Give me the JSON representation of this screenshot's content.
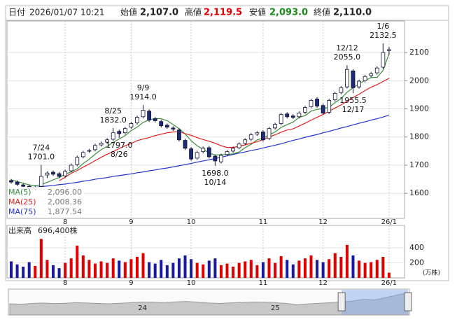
{
  "header": {
    "date_label": "日付",
    "datetime": "2026/01/07 10:21",
    "open_label": "始値",
    "open": "2,107.0",
    "high_label": "高値",
    "high": "2,119.5",
    "low_label": "安値",
    "low": "2,093.0",
    "close_label": "終値",
    "close": "2,110.0"
  },
  "chart_data": {
    "type": "candlestick",
    "categories": [
      null,
      null,
      null,
      null,
      null,
      null,
      null,
      null,
      null,
      "8",
      null,
      null,
      null,
      null,
      null,
      null,
      null,
      null,
      null,
      null,
      "9",
      null,
      null,
      null,
      null,
      null,
      null,
      null,
      null,
      null,
      "10",
      null,
      null,
      null,
      null,
      null,
      null,
      null,
      null,
      null,
      null,
      null,
      "11",
      null,
      null,
      null,
      null,
      null,
      null,
      null,
      null,
      null,
      "12",
      null,
      null,
      null,
      null,
      null,
      null,
      null,
      null,
      null,
      null,
      "26/1"
    ],
    "open": [
      1645,
      1640,
      1630,
      1625,
      1615,
      1625,
      1665,
      1675,
      1670,
      1662,
      1680,
      1702,
      1730,
      1750,
      1755,
      1772,
      1782,
      1792,
      1820,
      1815,
      1835,
      1850,
      1872,
      1892,
      1865,
      1855,
      1842,
      1832,
      1825,
      1788,
      1758,
      1725,
      1748,
      1762,
      1732,
      1712,
      1738,
      1750,
      1762,
      1778,
      1792,
      1810,
      1818,
      1795,
      1832,
      1848,
      1882,
      1875,
      1872,
      1888,
      1908,
      1935,
      1912,
      1888,
      1932,
      1958,
      1978,
      2035,
      1978,
      2000,
      2018,
      2028,
      2048,
      2107
    ],
    "high": [
      1651,
      1646,
      1636,
      1631,
      1628,
      1701,
      1678,
      1681,
      1676,
      1684,
      1706,
      1734,
      1751,
      1758,
      1776,
      1784,
      1796,
      1832,
      1826,
      1836,
      1854,
      1876,
      1914,
      1898,
      1871,
      1861,
      1848,
      1838,
      1831,
      1794,
      1764,
      1751,
      1766,
      1768,
      1738,
      1741,
      1754,
      1766,
      1781,
      1796,
      1814,
      1821,
      1824,
      1836,
      1851,
      1886,
      1888,
      1881,
      1891,
      1911,
      1936,
      1941,
      1918,
      1936,
      1961,
      1981,
      2055,
      2041,
      2004,
      2021,
      2031,
      2051,
      2132.5,
      2119.5
    ],
    "low": [
      1634,
      1626,
      1619,
      1612,
      1609,
      1619,
      1654,
      1662,
      1654,
      1656,
      1674,
      1696,
      1724,
      1744,
      1749,
      1766,
      1776,
      1786,
      1797,
      1809,
      1829,
      1844,
      1866,
      1854,
      1852,
      1834,
      1829,
      1822,
      1784,
      1754,
      1716,
      1719,
      1742,
      1724,
      1698,
      1706,
      1732,
      1744,
      1756,
      1772,
      1786,
      1804,
      1784,
      1789,
      1826,
      1842,
      1866,
      1864,
      1866,
      1882,
      1902,
      1904,
      1879,
      1882,
      1926,
      1952,
      1972,
      1955.5,
      1972,
      1994,
      2012,
      2022,
      2042,
      2093
    ],
    "close": [
      1640,
      1632,
      1625,
      1618,
      1622,
      1660,
      1672,
      1668,
      1660,
      1678,
      1700,
      1728,
      1745,
      1752,
      1770,
      1778,
      1790,
      1815,
      1812,
      1830,
      1848,
      1870,
      1895,
      1860,
      1858,
      1840,
      1835,
      1828,
      1790,
      1760,
      1722,
      1745,
      1760,
      1730,
      1715,
      1735,
      1748,
      1760,
      1775,
      1790,
      1808,
      1815,
      1790,
      1830,
      1845,
      1880,
      1872,
      1870,
      1885,
      1905,
      1930,
      1910,
      1885,
      1930,
      1955,
      1975,
      2040,
      1975,
      1998,
      2015,
      2025,
      2045,
      2100,
      2110
    ],
    "up_color": "#ffffff",
    "down_color": "#1c2a7a",
    "outline_color": "#111133",
    "ylim": [
      1511,
      2212
    ],
    "yticks": [
      1600,
      1700,
      1800,
      1900,
      2000,
      2100
    ],
    "grid": true,
    "annotations": [
      {
        "date": "7/24",
        "label": "1701.0",
        "value": 1701
      },
      {
        "date": "8/25",
        "label": "1832.0",
        "value": 1832
      },
      {
        "date": "8/26",
        "label": "1797.0",
        "value": 1797
      },
      {
        "date": "9/9",
        "label": "1914.0",
        "value": 1914
      },
      {
        "date": "10/14",
        "label": "1698.0",
        "value": 1698
      },
      {
        "date": "12/12",
        "label": "2055.0",
        "value": 2055
      },
      {
        "date": "12/17",
        "label": "1955.5",
        "value": 1955.5
      },
      {
        "date": "1/6",
        "label": "2132.5",
        "value": 2132.5
      }
    ],
    "moving_averages": [
      {
        "name": "MA(5)",
        "color": "#3a8f3a",
        "latest_label": "2,096.00",
        "values": [
          1648,
          1642,
          1636,
          1630,
          1627,
          1631,
          1639,
          1648,
          1656,
          1668,
          1676,
          1687,
          1706,
          1721,
          1739,
          1755,
          1767,
          1781,
          1793,
          1805,
          1823,
          1835,
          1852,
          1861,
          1866,
          1865,
          1858,
          1844,
          1830,
          1811,
          1787,
          1769,
          1757,
          1743,
          1736,
          1737,
          1738,
          1740,
          1747,
          1762,
          1774,
          1790,
          1796,
          1808,
          1818,
          1834,
          1844,
          1853,
          1870,
          1876,
          1892,
          1898,
          1901,
          1906,
          1922,
          1937,
          1959,
          1975,
          1989,
          2001,
          2011,
          2012,
          2037,
          2096
        ]
      },
      {
        "name": "MA(25)",
        "color": "#e02020",
        "latest_label": "2,008.36",
        "values": [
          null,
          null,
          null,
          null,
          null,
          null,
          null,
          null,
          1645,
          1657,
          1671,
          1681,
          1693,
          1704,
          1716,
          1728,
          1739,
          1748,
          1759,
          1769,
          1777,
          1787,
          1793,
          1798,
          1805,
          1810,
          1815,
          1818,
          1819,
          1812,
          1806,
          1798,
          1791,
          1785,
          1778,
          1769,
          1763,
          1763,
          1767,
          1772,
          1778,
          1783,
          1791,
          1800,
          1808,
          1817,
          1825,
          1829,
          1839,
          1849,
          1860,
          1870,
          1880,
          1892,
          1903,
          1914,
          1927,
          1940,
          1952,
          1965,
          1977,
          1986,
          1997,
          2008.36
        ]
      },
      {
        "name": "MA(75)",
        "color": "#2233cc",
        "latest_label": "1,877.54",
        "values": [
          1612,
          1614,
          1617,
          1619,
          1621,
          1624,
          1626,
          1628,
          1631,
          1633,
          1636,
          1639,
          1643,
          1646,
          1650,
          1653,
          1656,
          1660,
          1663,
          1666,
          1669,
          1673,
          1676,
          1680,
          1683,
          1687,
          1690,
          1694,
          1698,
          1702,
          1706,
          1711,
          1715,
          1719,
          1724,
          1728,
          1733,
          1738,
          1743,
          1747,
          1752,
          1756,
          1761,
          1766,
          1771,
          1776,
          1782,
          1788,
          1793,
          1799,
          1804,
          1809,
          1815,
          1820,
          1826,
          1832,
          1837,
          1843,
          1849,
          1854,
          1860,
          1865,
          1871,
          1877.54
        ]
      }
    ],
    "volume": {
      "label": "出来高",
      "total_label": "696,400株",
      "unit": "(万株)",
      "up_color": "#e00000",
      "down_color": "#1a1aa0",
      "ylim": [
        0,
        700
      ],
      "yticks": [
        200,
        400
      ],
      "values": [
        220,
        180,
        150,
        210,
        160,
        520,
        240,
        170,
        130,
        200,
        260,
        430,
        300,
        240,
        190,
        220,
        200,
        260,
        230,
        210,
        250,
        280,
        330,
        210,
        190,
        240,
        170,
        200,
        260,
        300,
        250,
        200,
        180,
        230,
        260,
        170,
        190,
        150,
        200,
        220,
        240,
        170,
        210,
        260,
        200,
        290,
        240,
        180,
        230,
        260,
        300,
        240,
        210,
        250,
        330,
        280,
        440,
        300,
        230,
        200,
        210,
        240,
        280,
        69.64
      ]
    },
    "navigator": {
      "categories": [
        null,
        null,
        null,
        null,
        null,
        null,
        null,
        null,
        null,
        null,
        null,
        null,
        "24",
        null,
        null,
        null,
        null,
        null,
        null,
        null,
        null,
        null,
        null,
        null,
        "25",
        null,
        null,
        null,
        null,
        null,
        null,
        null,
        null,
        null,
        null,
        null,
        null
      ],
      "values": [
        1560,
        1540,
        1580,
        1600,
        1570,
        1590,
        1620,
        1600,
        1580,
        1560,
        1590,
        1620,
        1650,
        1640,
        1620,
        1660,
        1680,
        1640,
        1600,
        1580,
        1610,
        1630,
        1650,
        1640,
        1620,
        1580,
        1520,
        1560,
        1590,
        1620,
        1640,
        1700,
        1790,
        1760,
        1880,
        2000,
        2110
      ],
      "ylim": [
        1000,
        2300
      ]
    }
  }
}
